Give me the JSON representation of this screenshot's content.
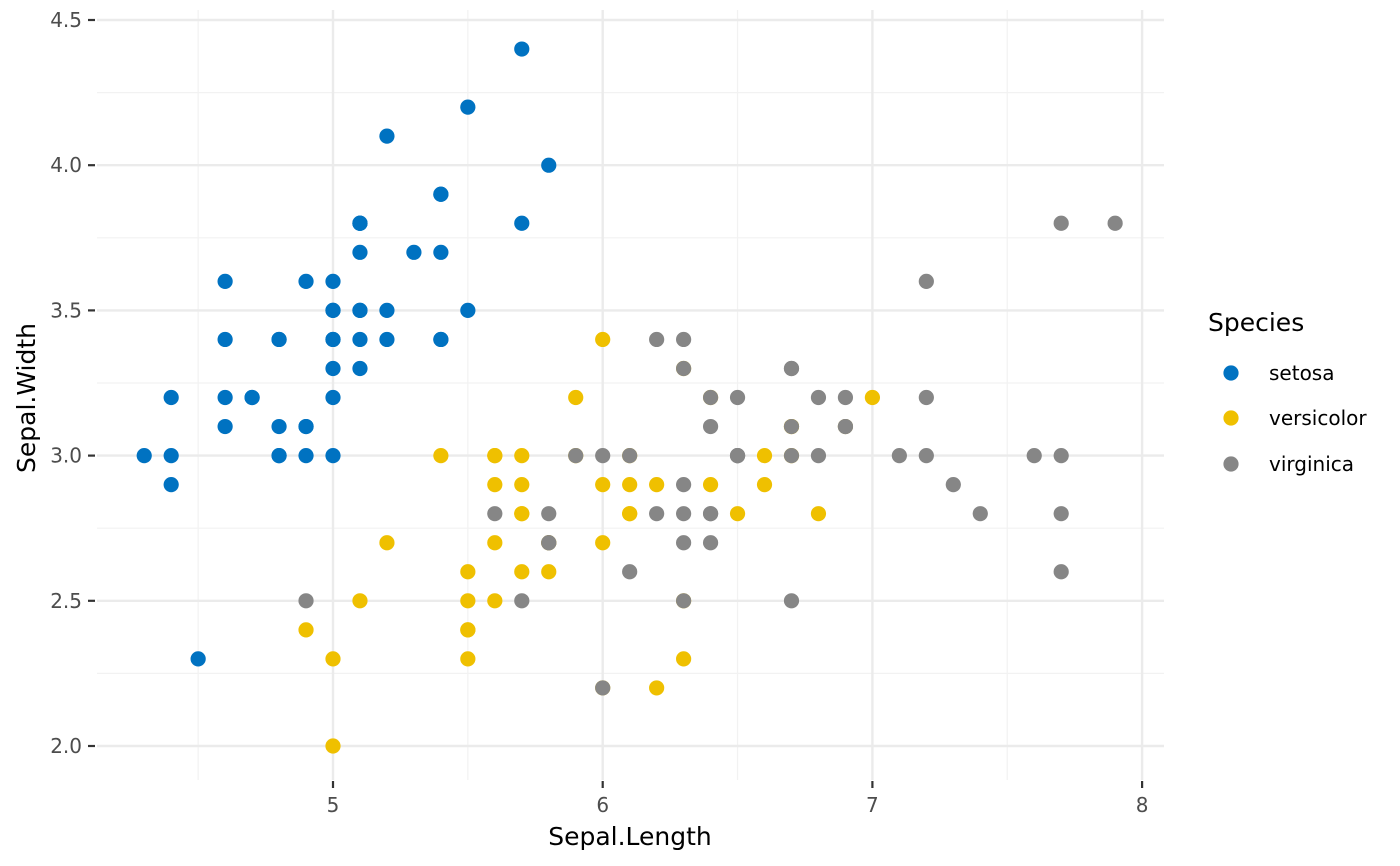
{
  "chart_data": {
    "type": "scatter",
    "xlabel": "Sepal.Length",
    "ylabel": "Sepal.Width",
    "xlim": [
      4.2,
      8.08
    ],
    "ylim": [
      1.9,
      4.5
    ],
    "x_ticks": [
      5,
      6,
      7,
      8
    ],
    "x_tick_labels": [
      "5",
      "6",
      "7",
      "8"
    ],
    "y_ticks": [
      2.0,
      2.5,
      3.0,
      3.5,
      4.0,
      4.5
    ],
    "y_tick_labels": [
      "2.0",
      "2.5",
      "3.0",
      "3.5",
      "4.0",
      "4.5"
    ],
    "grid": true,
    "legend": {
      "title": "Species",
      "position": "right"
    },
    "series": [
      {
        "name": "setosa",
        "color": "#0072C1",
        "points": [
          [
            5.1,
            3.5
          ],
          [
            4.9,
            3.0
          ],
          [
            4.7,
            3.2
          ],
          [
            4.6,
            3.1
          ],
          [
            5.0,
            3.6
          ],
          [
            5.4,
            3.9
          ],
          [
            4.6,
            3.4
          ],
          [
            5.0,
            3.4
          ],
          [
            4.4,
            2.9
          ],
          [
            4.9,
            3.1
          ],
          [
            5.4,
            3.7
          ],
          [
            4.8,
            3.4
          ],
          [
            4.8,
            3.0
          ],
          [
            4.3,
            3.0
          ],
          [
            5.8,
            4.0
          ],
          [
            5.7,
            4.4
          ],
          [
            5.4,
            3.9
          ],
          [
            5.1,
            3.5
          ],
          [
            5.7,
            3.8
          ],
          [
            5.1,
            3.8
          ],
          [
            5.4,
            3.4
          ],
          [
            5.1,
            3.7
          ],
          [
            4.6,
            3.6
          ],
          [
            5.1,
            3.3
          ],
          [
            4.8,
            3.4
          ],
          [
            5.0,
            3.0
          ],
          [
            5.0,
            3.4
          ],
          [
            5.2,
            3.5
          ],
          [
            5.2,
            3.4
          ],
          [
            4.7,
            3.2
          ],
          [
            4.8,
            3.1
          ],
          [
            5.4,
            3.4
          ],
          [
            5.2,
            4.1
          ],
          [
            5.5,
            4.2
          ],
          [
            4.9,
            3.1
          ],
          [
            5.0,
            3.2
          ],
          [
            5.5,
            3.5
          ],
          [
            4.9,
            3.6
          ],
          [
            4.4,
            3.0
          ],
          [
            5.1,
            3.4
          ],
          [
            5.0,
            3.5
          ],
          [
            4.5,
            2.3
          ],
          [
            4.4,
            3.2
          ],
          [
            5.0,
            3.5
          ],
          [
            5.1,
            3.8
          ],
          [
            4.8,
            3.0
          ],
          [
            5.1,
            3.8
          ],
          [
            4.6,
            3.2
          ],
          [
            5.3,
            3.7
          ],
          [
            5.0,
            3.3
          ]
        ]
      },
      {
        "name": "versicolor",
        "color": "#EFC000",
        "points": [
          [
            7.0,
            3.2
          ],
          [
            6.4,
            3.2
          ],
          [
            6.9,
            3.1
          ],
          [
            5.5,
            2.3
          ],
          [
            6.5,
            2.8
          ],
          [
            5.7,
            2.8
          ],
          [
            6.3,
            3.3
          ],
          [
            4.9,
            2.4
          ],
          [
            6.6,
            2.9
          ],
          [
            5.2,
            2.7
          ],
          [
            5.0,
            2.0
          ],
          [
            5.9,
            3.0
          ],
          [
            6.0,
            2.2
          ],
          [
            6.1,
            2.9
          ],
          [
            5.6,
            2.9
          ],
          [
            6.7,
            3.1
          ],
          [
            5.6,
            3.0
          ],
          [
            5.8,
            2.7
          ],
          [
            6.2,
            2.2
          ],
          [
            5.6,
            2.5
          ],
          [
            5.9,
            3.2
          ],
          [
            6.1,
            2.8
          ],
          [
            6.3,
            2.5
          ],
          [
            6.1,
            2.8
          ],
          [
            6.4,
            2.9
          ],
          [
            6.6,
            3.0
          ],
          [
            6.8,
            2.8
          ],
          [
            6.7,
            3.0
          ],
          [
            6.0,
            2.9
          ],
          [
            5.7,
            2.6
          ],
          [
            5.5,
            2.4
          ],
          [
            5.5,
            2.4
          ],
          [
            5.8,
            2.7
          ],
          [
            6.0,
            2.7
          ],
          [
            5.4,
            3.0
          ],
          [
            6.0,
            3.4
          ],
          [
            6.7,
            3.1
          ],
          [
            6.3,
            2.3
          ],
          [
            5.6,
            3.0
          ],
          [
            5.5,
            2.5
          ],
          [
            5.5,
            2.6
          ],
          [
            6.1,
            3.0
          ],
          [
            5.8,
            2.6
          ],
          [
            5.0,
            2.3
          ],
          [
            5.6,
            2.7
          ],
          [
            5.7,
            3.0
          ],
          [
            5.7,
            2.9
          ],
          [
            6.2,
            2.9
          ],
          [
            5.1,
            2.5
          ],
          [
            5.7,
            2.8
          ]
        ]
      },
      {
        "name": "virginica",
        "color": "#868686",
        "points": [
          [
            6.3,
            3.3
          ],
          [
            5.8,
            2.7
          ],
          [
            7.1,
            3.0
          ],
          [
            6.3,
            2.9
          ],
          [
            6.5,
            3.0
          ],
          [
            7.6,
            3.0
          ],
          [
            4.9,
            2.5
          ],
          [
            7.3,
            2.9
          ],
          [
            6.7,
            2.5
          ],
          [
            7.2,
            3.6
          ],
          [
            6.5,
            3.2
          ],
          [
            6.4,
            2.7
          ],
          [
            6.8,
            3.0
          ],
          [
            5.7,
            2.5
          ],
          [
            5.8,
            2.8
          ],
          [
            6.4,
            3.2
          ],
          [
            6.5,
            3.0
          ],
          [
            7.7,
            3.8
          ],
          [
            7.7,
            2.6
          ],
          [
            6.0,
            2.2
          ],
          [
            6.9,
            3.2
          ],
          [
            5.6,
            2.8
          ],
          [
            7.7,
            2.8
          ],
          [
            6.3,
            2.7
          ],
          [
            6.7,
            3.3
          ],
          [
            7.2,
            3.2
          ],
          [
            6.2,
            2.8
          ],
          [
            6.1,
            3.0
          ],
          [
            6.4,
            2.8
          ],
          [
            7.2,
            3.0
          ],
          [
            7.4,
            2.8
          ],
          [
            7.9,
            3.8
          ],
          [
            6.4,
            2.8
          ],
          [
            6.3,
            2.8
          ],
          [
            6.1,
            2.6
          ],
          [
            7.7,
            3.0
          ],
          [
            6.3,
            3.4
          ],
          [
            6.4,
            3.1
          ],
          [
            6.0,
            3.0
          ],
          [
            6.9,
            3.1
          ],
          [
            6.7,
            3.1
          ],
          [
            6.9,
            3.1
          ],
          [
            5.8,
            2.7
          ],
          [
            6.8,
            3.2
          ],
          [
            6.7,
            3.3
          ],
          [
            6.7,
            3.0
          ],
          [
            6.3,
            2.5
          ],
          [
            6.5,
            3.0
          ],
          [
            6.2,
            3.4
          ],
          [
            5.9,
            3.0
          ]
        ]
      }
    ]
  }
}
